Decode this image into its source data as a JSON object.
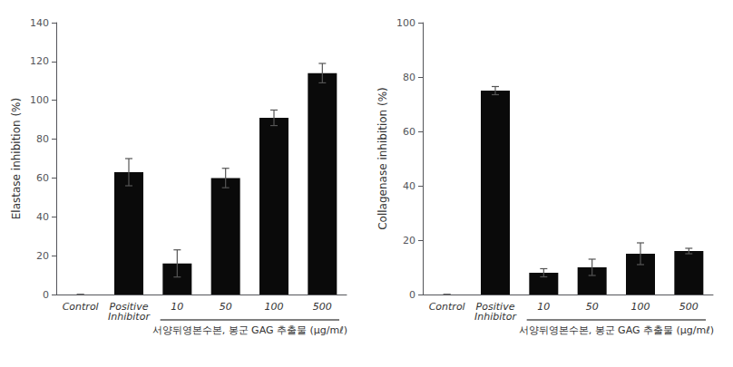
{
  "chart_data": [
    {
      "type": "bar",
      "categories": [
        "Control",
        "Positive\nInhibitor",
        "10",
        "50",
        "100",
        "500"
      ],
      "values": [
        0,
        63,
        16,
        60,
        91,
        114
      ],
      "errors": [
        0,
        7,
        7,
        5,
        4,
        5
      ],
      "ylabel": "Elastase inhibition (%)",
      "ylim": [
        0,
        140
      ],
      "yticks": [
        0,
        20,
        40,
        60,
        80,
        100,
        120,
        140
      ],
      "annotations": [
        {
          "text": "서양뒤영본수본, 봉군 GAG 추출물 (μg/mℓ)",
          "from": "10",
          "to": "500"
        }
      ],
      "color": "#0a0a0a",
      "grid": false
    },
    {
      "type": "bar",
      "categories": [
        "Control",
        "Positive\nInhibitor",
        "10",
        "50",
        "100",
        "500"
      ],
      "values": [
        0,
        75,
        8,
        10,
        15,
        16
      ],
      "errors": [
        0,
        1.5,
        1.5,
        3,
        4,
        1
      ],
      "ylabel": "Collagenase inhibition (%)",
      "ylim": [
        0,
        100
      ],
      "yticks": [
        0,
        20,
        40,
        60,
        80,
        100
      ],
      "annotations": [
        {
          "text": "서양뒤영본수본, 봉군 GAG 추출물 (μg/mℓ)",
          "from": "10",
          "to": "500"
        }
      ],
      "color": "#0a0a0a",
      "grid": false
    }
  ]
}
